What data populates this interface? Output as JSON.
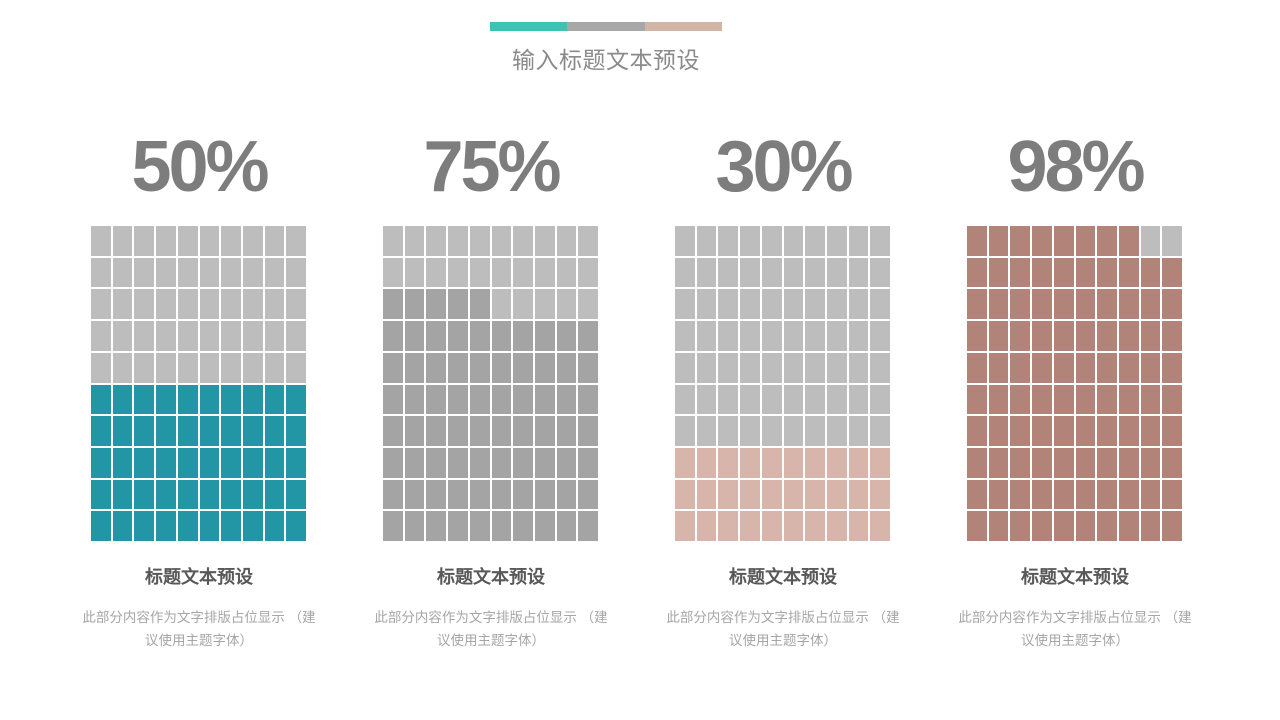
{
  "header": {
    "title": "输入标题文本预设",
    "bar_colors": [
      "#3dc2b3",
      "#a8a8a8",
      "#d3b5a5"
    ]
  },
  "chart_data": {
    "type": "waffle",
    "grid": {
      "rows": 10,
      "cols": 10,
      "cell_unit_percent": 1
    },
    "fill_rule": "bottom-up, partial row fills from left",
    "charts": [
      {
        "label": "50%",
        "percent": 50,
        "fill_color": "#2396a5",
        "empty_color": "#bdbdbd",
        "title": "标题文本预设",
        "desc": "此部分内容作为文字排版占位显示 （建\n议使用主题字体）"
      },
      {
        "label": "75%",
        "percent": 75,
        "fill_color": "#a4a4a4",
        "empty_color": "#bdbdbd",
        "title": "标题文本预设",
        "desc": "此部分内容作为文字排版占位显示 （建\n议使用主题字体）"
      },
      {
        "label": "30%",
        "percent": 30,
        "fill_color": "#d8b5aa",
        "empty_color": "#bdbdbd",
        "title": "标题文本预设",
        "desc": "此部分内容作为文字排版占位显示 （建\n议使用主题字体）"
      },
      {
        "label": "98%",
        "percent": 98,
        "fill_color": "#b28379",
        "empty_color": "#bdbdbd",
        "title": "标题文本预设",
        "desc": "此部分内容作为文字排版占位显示 （建\n议使用主题字体）"
      }
    ]
  }
}
